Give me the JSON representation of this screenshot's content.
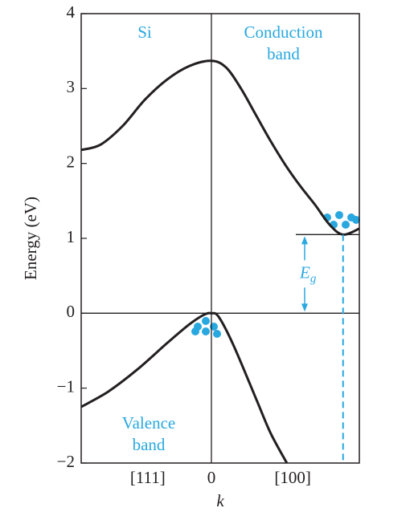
{
  "chart_data": {
    "type": "line",
    "ylabel": "Energy (eV)",
    "xlabel": "k",
    "ylim": [
      -2,
      4
    ],
    "yticks": [
      {
        "value": -2,
        "label": "−2"
      },
      {
        "value": -1,
        "label": "−1"
      },
      0,
      1,
      2,
      3,
      4
    ],
    "xlim": [
      -0.88,
      1
    ],
    "xticks": [
      {
        "value": -0.43,
        "label": "[111]"
      },
      0,
      {
        "value": 0.55,
        "label": "[100]"
      }
    ],
    "series": [
      {
        "name": "Conduction band",
        "color": "#231f20",
        "x": [
          -0.88,
          -0.75,
          -0.6,
          -0.45,
          -0.3,
          -0.15,
          0,
          0.1,
          0.2,
          0.3,
          0.4,
          0.5,
          0.6,
          0.7,
          0.8,
          0.89,
          1.0
        ],
        "values": [
          2.18,
          2.25,
          2.5,
          2.85,
          3.12,
          3.3,
          3.37,
          3.28,
          3.0,
          2.65,
          2.3,
          1.98,
          1.7,
          1.45,
          1.18,
          1.05,
          1.13
        ]
      },
      {
        "name": "Valence band",
        "color": "#231f20",
        "x": [
          -0.88,
          -0.7,
          -0.5,
          -0.3,
          -0.15,
          -0.05,
          0,
          0.05,
          0.15,
          0.31,
          0.4,
          0.51
        ],
        "values": [
          -1.25,
          -1.05,
          -0.75,
          -0.4,
          -0.15,
          -0.02,
          0,
          -0.05,
          -0.43,
          -1.18,
          -1.6,
          -2.0
        ]
      }
    ],
    "annotations": {
      "material": "Si",
      "conduction": "Conduction band",
      "valence": "Valence band"
    },
    "gap": {
      "level": 1.05,
      "k": 0.89,
      "symbol": "E",
      "subscript": "g"
    }
  }
}
